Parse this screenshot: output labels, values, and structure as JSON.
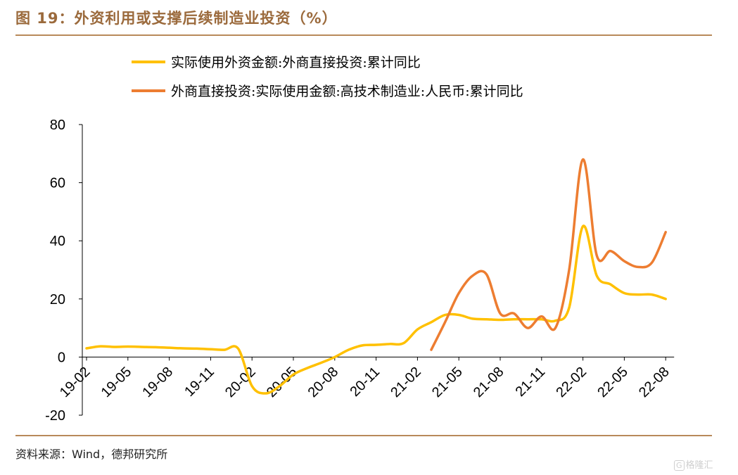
{
  "header": {
    "title": "图 19：外资利用或支撑后续制造业投资（%）"
  },
  "footer": {
    "source": "资料来源：Wind，德邦研究所",
    "watermark_text": "格隆汇",
    "watermark_icon": "G"
  },
  "colors": {
    "title": "#9B6A3C",
    "rule": "#B8895A",
    "series1": "#FFC000",
    "series2": "#ED7D31"
  },
  "chart_data": {
    "type": "line",
    "title": "",
    "xlabel": "",
    "ylabel": "",
    "ylim": [
      -20,
      80
    ],
    "yticks": [
      -20,
      0,
      20,
      40,
      60,
      80
    ],
    "x_categories": [
      "19-02",
      "19-03",
      "19-04",
      "19-05",
      "19-06",
      "19-07",
      "19-08",
      "19-09",
      "19-10",
      "19-11",
      "19-12",
      "20-01",
      "20-02",
      "20-03",
      "20-04",
      "20-05",
      "20-06",
      "20-07",
      "20-08",
      "20-09",
      "20-10",
      "20-11",
      "20-12",
      "21-01",
      "21-02",
      "21-03",
      "21-04",
      "21-05",
      "21-06",
      "21-07",
      "21-08",
      "21-09",
      "21-10",
      "21-11",
      "21-12",
      "22-01",
      "22-02",
      "22-03",
      "22-04",
      "22-05",
      "22-06",
      "22-07",
      "22-08"
    ],
    "x_tick_labels": [
      "19-02",
      "19-05",
      "19-08",
      "19-11",
      "20-02",
      "20-05",
      "20-08",
      "20-11",
      "21-02",
      "21-05",
      "21-08",
      "21-11",
      "22-02",
      "22-05",
      "22-08"
    ],
    "legend_position": "top",
    "grid": false,
    "series": [
      {
        "name": "实际使用外资金额:外商直接投资:累计同比",
        "color": "#FFC000",
        "x": [
          "19-02",
          "19-03",
          "19-04",
          "19-05",
          "19-06",
          "19-07",
          "19-08",
          "19-09",
          "19-10",
          "19-11",
          "19-12",
          "20-01",
          "20-02",
          "20-03",
          "20-04",
          "20-05",
          "20-06",
          "20-07",
          "20-08",
          "20-09",
          "20-10",
          "20-11",
          "20-12",
          "21-01",
          "21-02",
          "21-03",
          "21-04",
          "21-05",
          "21-06",
          "21-07",
          "21-08",
          "21-09",
          "21-10",
          "21-11",
          "21-12",
          "22-01",
          "22-02",
          "22-03",
          "22-04",
          "22-05",
          "22-06",
          "22-07",
          "22-08"
        ],
        "values": [
          3,
          3.7,
          3.5,
          3.6,
          3.5,
          3.4,
          3.2,
          3.0,
          2.9,
          2.7,
          2.5,
          2.9,
          -10.0,
          -12.5,
          -10.0,
          -6.0,
          -3.8,
          -2.0,
          0.0,
          2.5,
          4.0,
          4.2,
          4.5,
          4.8,
          9.5,
          12.0,
          14.5,
          14.5,
          13.2,
          13.0,
          12.8,
          13.0,
          13.0,
          13.0,
          12.5,
          17.0,
          45.0,
          28.0,
          25.0,
          22.0,
          21.5,
          21.5,
          20.0
        ]
      },
      {
        "name": "外商直接投资:实际使用金额:高技术制造业:人民币:累计同比",
        "color": "#ED7D31",
        "x": [
          "21-03",
          "21-04",
          "21-05",
          "21-06",
          "21-07",
          "21-08",
          "21-09",
          "21-10",
          "21-11",
          "21-12",
          "22-01",
          "22-02",
          "22-03",
          "22-04",
          "22-05",
          "22-06",
          "22-07",
          "22-08"
        ],
        "values": [
          2.5,
          12.0,
          22.0,
          28.0,
          28.5,
          15.0,
          15.0,
          10.0,
          14.0,
          10.0,
          30.0,
          68.0,
          35.0,
          36.5,
          33.0,
          31.0,
          32.5,
          43.0
        ]
      }
    ]
  }
}
